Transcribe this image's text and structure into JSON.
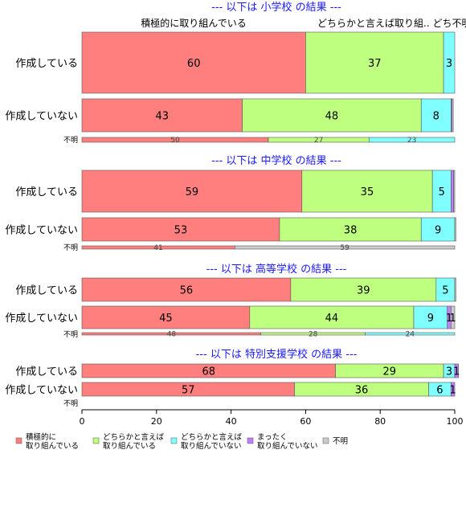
{
  "chart_data": {
    "type": "bar",
    "orientation": "horizontal",
    "stacked": true,
    "percent": true,
    "xlim": [
      0,
      100
    ],
    "x_ticks": [
      "0",
      "20",
      "40",
      "60",
      "80",
      "100"
    ],
    "header_labels": [
      "積極的に取り組んでいる",
      "どちらかと言えば取り組.. どち不明"
    ],
    "legend": {
      "position": "bottom",
      "items": [
        {
          "label": [
            "積極的に",
            "取り組んでいる"
          ],
          "color": "#ff7f7f"
        },
        {
          "label": [
            "どちらかと言えば",
            "取り組んでいる"
          ],
          "color": "#bfff7f"
        },
        {
          "label": [
            "どちらかと言えば",
            "取り組んでいない"
          ],
          "color": "#7fffff"
        },
        {
          "label": [
            "まったく",
            "取り組んでいない"
          ],
          "color": "#bf7fff"
        },
        {
          "label": [
            "不明"
          ],
          "color": "#cccccc"
        }
      ]
    },
    "panels": [
      {
        "title": "--- 以下は 小学校 の結果 ---",
        "rows": [
          {
            "label": "作成している",
            "values": [
              60,
              37,
              3,
              0,
              0
            ],
            "value_labels": [
              "60",
              "37",
              "3",
              "",
              ""
            ]
          },
          {
            "label": "作成していない",
            "values": [
              43,
              48,
              8,
              0.3,
              0.3
            ],
            "value_labels": [
              "43",
              "48",
              "8",
              "",
              ""
            ]
          },
          {
            "label": "不明",
            "values": [
              50,
              27,
              23,
              0,
              0
            ],
            "value_labels": [
              "50",
              "27",
              "23",
              "",
              ""
            ]
          }
        ]
      },
      {
        "title": "--- 以下は 中学校 の結果 ---",
        "rows": [
          {
            "label": "作成している",
            "values": [
              59,
              35,
              5,
              0.7,
              0.3
            ],
            "value_labels": [
              "59",
              "35",
              "5",
              "",
              ""
            ]
          },
          {
            "label": "作成していない",
            "values": [
              53,
              38,
              9,
              0,
              0.3
            ],
            "value_labels": [
              "53",
              "38",
              "9",
              "",
              ""
            ]
          },
          {
            "label": "不明",
            "values": [
              41,
              0,
              0,
              0,
              59
            ],
            "value_labels": [
              "41",
              "",
              "",
              "",
              "59"
            ]
          }
        ]
      },
      {
        "title": "--- 以下は 高等学校 の結果 ---",
        "rows": [
          {
            "label": "作成している",
            "values": [
              56,
              39,
              5,
              0,
              0.3
            ],
            "value_labels": [
              "56",
              "39",
              "5",
              "",
              ""
            ]
          },
          {
            "label": "作成していない",
            "values": [
              45,
              44,
              9,
              1,
              1
            ],
            "value_labels": [
              "45",
              "44",
              "9",
              "1",
              "1"
            ]
          },
          {
            "label": "不明",
            "values": [
              48,
              28,
              24,
              0,
              0
            ],
            "value_labels": [
              "48",
              "28",
              "24",
              "",
              ""
            ]
          }
        ]
      },
      {
        "title": "--- 以下は 特別支援学校 の結果 ---",
        "rows": [
          {
            "label": "作成している",
            "values": [
              68,
              29,
              3,
              1,
              0
            ],
            "value_labels": [
              "68",
              "29",
              "3",
              "1",
              ""
            ]
          },
          {
            "label": "作成していない",
            "values": [
              57,
              36,
              6,
              1,
              0
            ],
            "value_labels": [
              "57",
              "36",
              "6",
              "1",
              ""
            ]
          },
          {
            "label": "不明",
            "values": [],
            "value_labels": []
          }
        ]
      }
    ]
  }
}
